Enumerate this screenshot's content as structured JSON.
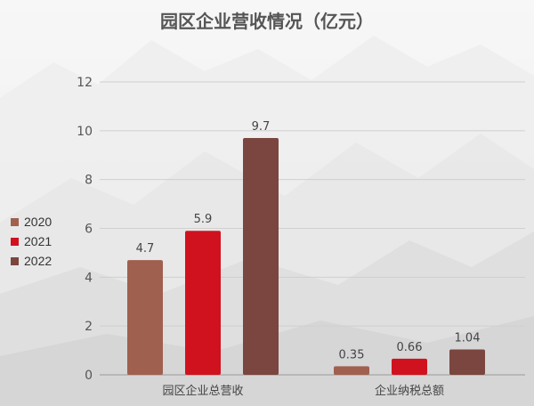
{
  "chart_data": {
    "type": "bar",
    "title": "园区企业营收情况（亿元）",
    "categories": [
      "园区企业总营收",
      "企业纳税总额"
    ],
    "series": [
      {
        "name": "2020",
        "color": "#a0604f",
        "values": [
          4.7,
          0.35
        ],
        "labels": [
          "4.7",
          "0.35"
        ]
      },
      {
        "name": "2021",
        "color": "#d0121f",
        "values": [
          5.9,
          0.66
        ],
        "labels": [
          "5.9",
          "0.66"
        ]
      },
      {
        "name": "2022",
        "color": "#7a463f",
        "values": [
          9.7,
          1.04
        ],
        "labels": [
          "9.7",
          "1.04"
        ]
      }
    ],
    "ylim": [
      0,
      12
    ],
    "yticks": [
      "0",
      "2",
      "4",
      "6",
      "8",
      "10",
      "12"
    ],
    "grid": true,
    "legend_position": "left"
  }
}
